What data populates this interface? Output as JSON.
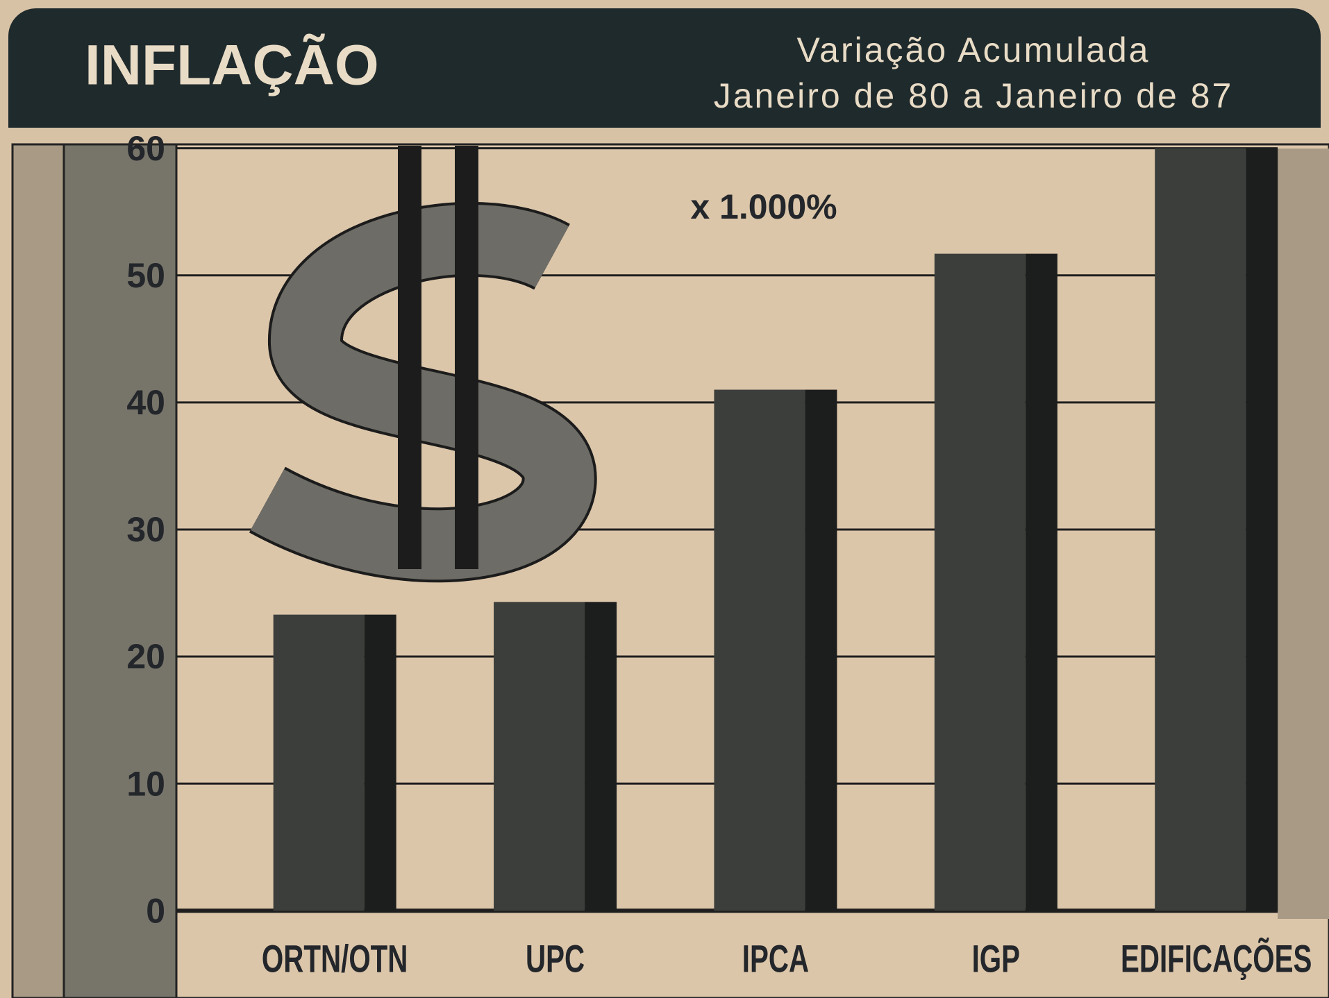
{
  "chart_data": {
    "type": "bar",
    "title": "INFLAÇÃO",
    "subtitle": [
      "Variação Acumulada",
      "Janeiro de 80 a Janeiro de 87"
    ],
    "annotation": "x 1.000%",
    "categories": [
      "ORTN/OTN",
      "UPC",
      "IPCA",
      "IGP",
      "EDIFICAÇÕES"
    ],
    "values": [
      23.3,
      24.3,
      41,
      51.7,
      60
    ],
    "color": "#3b3e3b",
    "ylim": [
      0,
      60
    ],
    "yticks": [
      0,
      10,
      20,
      30,
      40,
      50,
      60
    ],
    "grid": true
  }
}
